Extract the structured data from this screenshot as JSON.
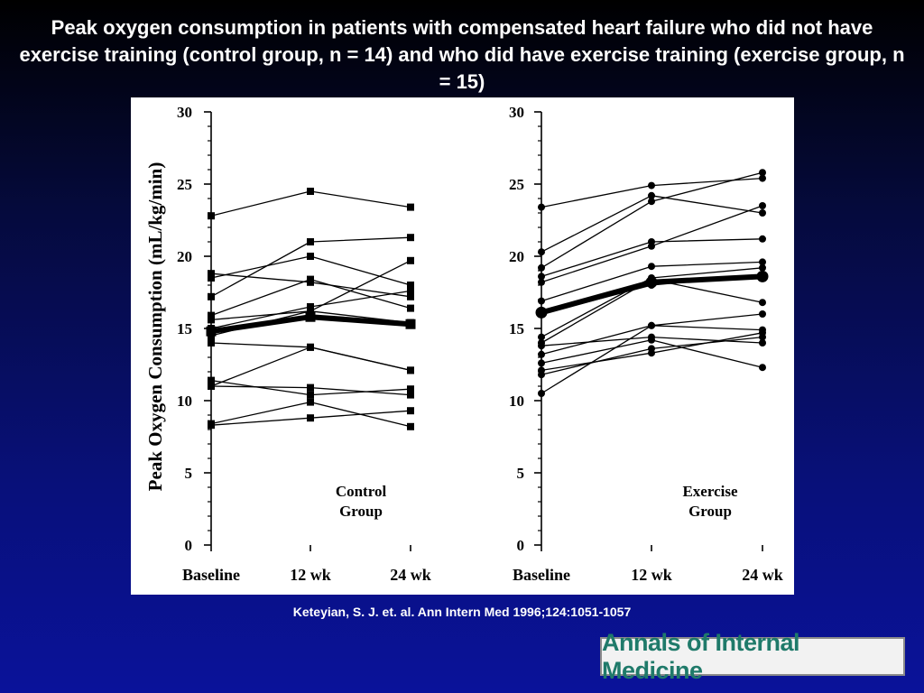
{
  "slide": {
    "title": "Peak oxygen consumption in patients with compensated heart failure who did not have exercise training (control group, n = 14) and who did have exercise training (exercise group, n = 15)",
    "citation": "Keteyian, S. J. et. al. Ann Intern Med 1996;124:1051-1057",
    "logo_text": "Annals of Internal Medicine"
  },
  "chart_data": [
    {
      "type": "line",
      "ylabel": "Peak Oxygen Consumption (mL/kg/min)",
      "categories": [
        "Baseline",
        "12 wk",
        "24 wk"
      ],
      "ylim": [
        0,
        30
      ],
      "yticks": [
        0,
        5,
        10,
        15,
        20,
        25,
        30
      ],
      "annotation": "Control\nGroup",
      "marker": "square",
      "series": [
        {
          "values": [
            22.8,
            24.5,
            23.4
          ]
        },
        {
          "values": [
            18.8,
            18.2,
            17.2
          ]
        },
        {
          "values": [
            18.5,
            20.0,
            18.0
          ]
        },
        {
          "values": [
            17.2,
            21.0,
            21.3
          ]
        },
        {
          "values": [
            15.9,
            18.4,
            16.4
          ]
        },
        {
          "values": [
            15.6,
            16.2,
            19.7
          ]
        },
        {
          "values": [
            15.0,
            16.5,
            17.6
          ]
        },
        {
          "values": [
            14.5,
            16.2,
            15.4
          ]
        },
        {
          "values": [
            14.0,
            13.7,
            12.1
          ]
        },
        {
          "values": [
            11.4,
            10.4,
            10.8
          ]
        },
        {
          "values": [
            11.0,
            13.7,
            12.1
          ]
        },
        {
          "values": [
            11.0,
            10.9,
            10.4
          ]
        },
        {
          "values": [
            8.4,
            9.9,
            8.2
          ]
        },
        {
          "values": [
            8.3,
            8.8,
            9.3
          ]
        },
        {
          "values": [
            14.8,
            15.8,
            15.3
          ],
          "mean": true
        }
      ]
    },
    {
      "type": "line",
      "categories": [
        "Baseline",
        "12 wk",
        "24 wk"
      ],
      "ylim": [
        0,
        30
      ],
      "yticks": [
        0,
        5,
        10,
        15,
        20,
        25,
        30
      ],
      "annotation": "Exercise\nGroup",
      "marker": "circle",
      "series": [
        {
          "values": [
            23.4,
            24.9,
            25.4
          ]
        },
        {
          "values": [
            20.3,
            24.2,
            23.0
          ]
        },
        {
          "values": [
            19.2,
            23.8,
            25.8
          ]
        },
        {
          "values": [
            18.2,
            20.7,
            23.5
          ]
        },
        {
          "values": [
            18.6,
            21.0,
            21.2
          ]
        },
        {
          "values": [
            16.9,
            19.3,
            19.6
          ]
        },
        {
          "values": [
            16.0,
            18.0,
            18.7
          ]
        },
        {
          "values": [
            14.4,
            18.5,
            19.2
          ]
        },
        {
          "values": [
            14.0,
            18.4,
            16.8
          ]
        },
        {
          "values": [
            13.8,
            14.4,
            14.0
          ]
        },
        {
          "values": [
            13.2,
            15.2,
            16.0
          ]
        },
        {
          "values": [
            12.6,
            14.2,
            12.3
          ]
        },
        {
          "values": [
            12.1,
            13.3,
            14.7
          ]
        },
        {
          "values": [
            11.8,
            13.6,
            14.4
          ]
        },
        {
          "values": [
            10.5,
            15.2,
            14.9
          ]
        },
        {
          "values": [
            16.1,
            18.2,
            18.6
          ],
          "mean": true
        }
      ]
    }
  ]
}
